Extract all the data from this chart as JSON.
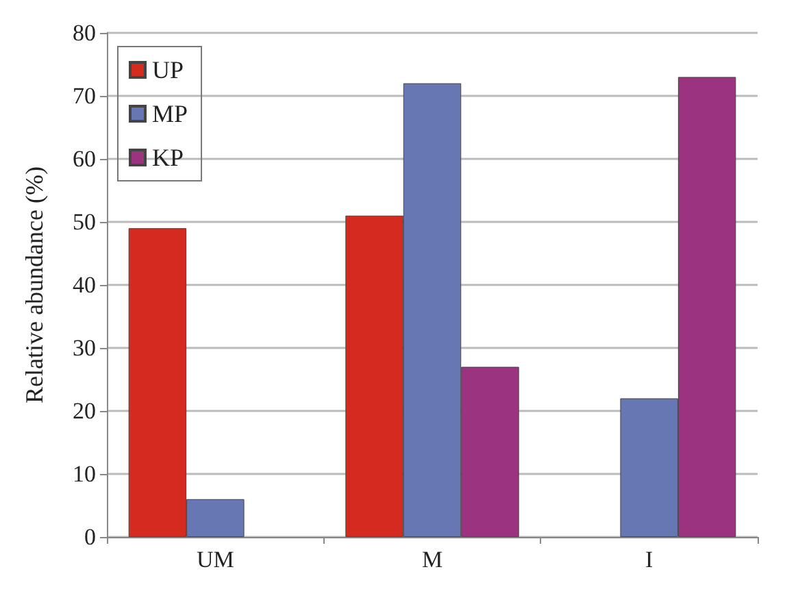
{
  "chart_data": {
    "type": "bar",
    "ylabel": "Relative abundance (%)",
    "categories": [
      "UM",
      "M",
      "I"
    ],
    "series": [
      {
        "name": "UP",
        "color": "#d42a20",
        "values": [
          49,
          51,
          null
        ]
      },
      {
        "name": "MP",
        "color": "#6677b3",
        "values": [
          6,
          72,
          22
        ]
      },
      {
        "name": "KP",
        "color": "#9b3380",
        "values": [
          null,
          27,
          73
        ]
      }
    ],
    "ylim": [
      0,
      80
    ],
    "yticks": [
      0,
      10,
      20,
      30,
      40,
      50,
      60,
      70,
      80
    ],
    "grid": "y",
    "legend": "top left"
  }
}
